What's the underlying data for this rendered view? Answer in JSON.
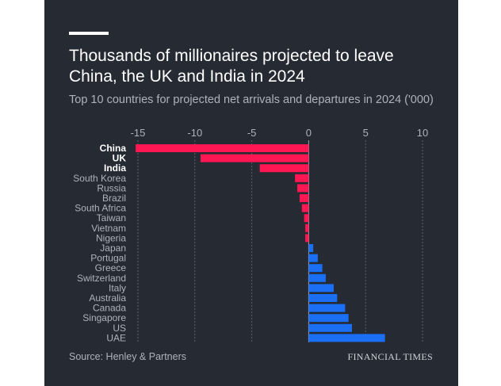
{
  "title": "Thousands of millionaires projected to leave China, the UK and India in 2024",
  "subtitle": "Top 10 countries for projected net arrivals and departures in 2024 ('000)",
  "source": "Source: Henley & Partners",
  "brand": "FINANCIAL TIMES",
  "colors": {
    "background": "#262a33",
    "negative": "#ff1754",
    "positive": "#1b6ff5",
    "grid": "#5c616d",
    "label": "#aeb2bb",
    "highlight_label": "#ffffff"
  },
  "chart_data": {
    "type": "bar",
    "orientation": "horizontal",
    "categories": [
      "China",
      "UK",
      "India",
      "South Korea",
      "Russia",
      "Brazil",
      "South Africa",
      "Taiwan",
      "Vietnam",
      "Nigeria",
      "Japan",
      "Portugal",
      "Greece",
      "Switzerland",
      "Italy",
      "Australia",
      "Canada",
      "Singapore",
      "US",
      "UAE"
    ],
    "values": [
      -15.2,
      -9.5,
      -4.3,
      -1.2,
      -1.0,
      -0.8,
      -0.6,
      -0.4,
      -0.3,
      -0.3,
      0.4,
      0.8,
      1.2,
      1.5,
      2.2,
      2.5,
      3.2,
      3.5,
      3.8,
      6.7
    ],
    "highlight": [
      "China",
      "UK",
      "India"
    ],
    "xlim": [
      -15,
      10
    ],
    "xticks": [
      -15,
      -10,
      -5,
      0,
      5,
      10
    ],
    "title": "Thousands of millionaires projected to leave China, the UK and India in 2024",
    "xlabel": "",
    "ylabel": ""
  }
}
